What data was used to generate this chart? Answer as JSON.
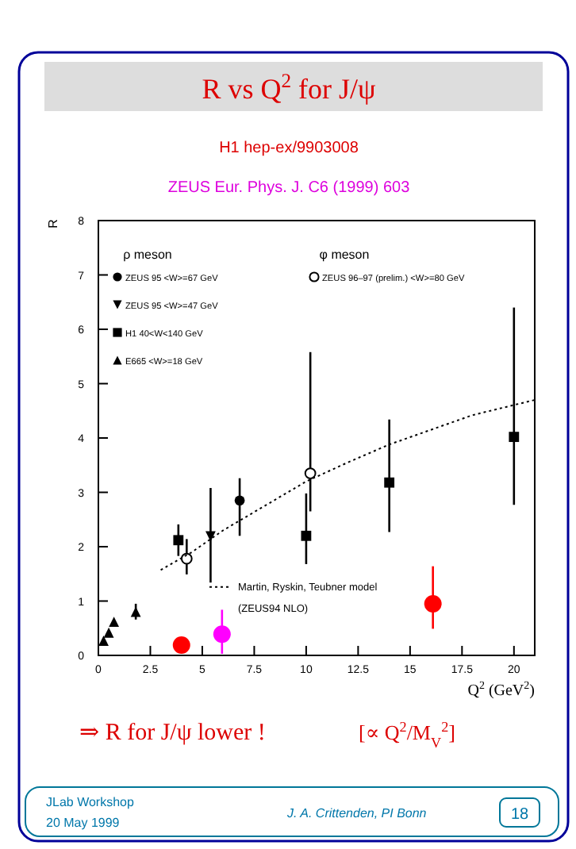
{
  "chart_data": {
    "type": "scatter",
    "title": "R vs Q$^{2}$ for J/ψ",
    "subtitle": "H1 hep-ex/9903008",
    "xlabel": "Q$^{2}$ (GeV$^{2}$)",
    "ylabel": "R",
    "xlim": [
      0,
      21
    ],
    "ylim": [
      0,
      8
    ],
    "xticks": [
      0,
      2.5,
      5,
      7.5,
      10,
      12.5,
      15,
      17.5,
      20
    ],
    "yticks": [
      0,
      1,
      2,
      3,
      4,
      5,
      6,
      7,
      8
    ],
    "legend": "left",
    "grid": false,
    "series": [
      {
        "name": "ZEUS 95 <W>=67 GeV",
        "color": "#000000",
        "marker": "circle",
        "x": [
          6.8
        ],
        "values": [
          2.85
        ],
        "errors": [
          [
            2.2,
            3.26
          ]
        ]
      },
      {
        "name": "ZEUS 95 <W>=47 GeV",
        "color": "#000000",
        "marker": "triangle-down",
        "x": [
          5.4
        ],
        "values": [
          2.19
        ],
        "errors": [
          [
            1.34,
            3.08
          ]
        ]
      },
      {
        "name": "H1 40<W<140 GeV",
        "color": "#000000",
        "marker": "square",
        "x": [
          3.85,
          10,
          14,
          20
        ],
        "values": [
          2.12,
          2.2,
          3.18,
          4.02
        ],
        "errors": [
          [
            1.83,
            2.41
          ],
          [
            1.68,
            2.98
          ],
          [
            2.27,
            4.34
          ],
          [
            2.77,
            6.4
          ]
        ]
      },
      {
        "name": "E665 <W>=18 GeV",
        "color": "#000000",
        "marker": "triangle",
        "x": [
          0.25,
          0.5,
          0.75,
          1.8
        ],
        "values": [
          0.27,
          0.42,
          0.62,
          0.8
        ],
        "errors": [
          null,
          null,
          null,
          [
            0.66,
            0.95
          ]
        ]
      },
      {
        "name": "ZEUS 96–97 (prelim.) <W>=80 GeV",
        "color": "#000000",
        "marker": "circle-open",
        "x": [
          4.25,
          10.2
        ],
        "values": [
          1.78,
          3.35
        ],
        "errors": [
          [
            1.49,
            2.14
          ],
          [
            2.65,
            5.58
          ]
        ]
      },
      {
        "name": "Martin, Ryskin, Teubner model",
        "type": "line",
        "line_style": "dotted",
        "color": "#000000",
        "x": [
          3,
          4.5,
          6,
          8,
          10,
          12,
          14,
          16,
          18,
          21
        ],
        "values": [
          1.57,
          1.9,
          2.3,
          2.75,
          3.2,
          3.55,
          3.88,
          4.15,
          4.42,
          4.7
        ]
      },
      {
        "color": "#ff0000",
        "marker": "circle",
        "x": [
          4,
          16.1
        ],
        "values": [
          0.19,
          0.95
        ],
        "errors": [
          [
            0.1,
            0.3
          ],
          [
            0.49,
            1.64
          ]
        ]
      },
      {
        "color": "#ff00ff",
        "marker": "circle",
        "x": [
          5.95
        ],
        "values": [
          0.39
        ],
        "errors": [
          [
            0.03,
            0.84
          ]
        ]
      }
    ],
    "annotations": [
      "ZEUS Eur. Phys. J. C6 (1999) 603",
      "ρ meson",
      "φ meson",
      "(ZEUS94 NLO)",
      "⇒ R for J/ψ lower !",
      "[∝ Q$^{2}$/M$_{V}$$^{2}$]",
      "JLab Workshop",
      "20 May 1999",
      "J. A. Crittenden, PI Bonn",
      "18"
    ]
  }
}
